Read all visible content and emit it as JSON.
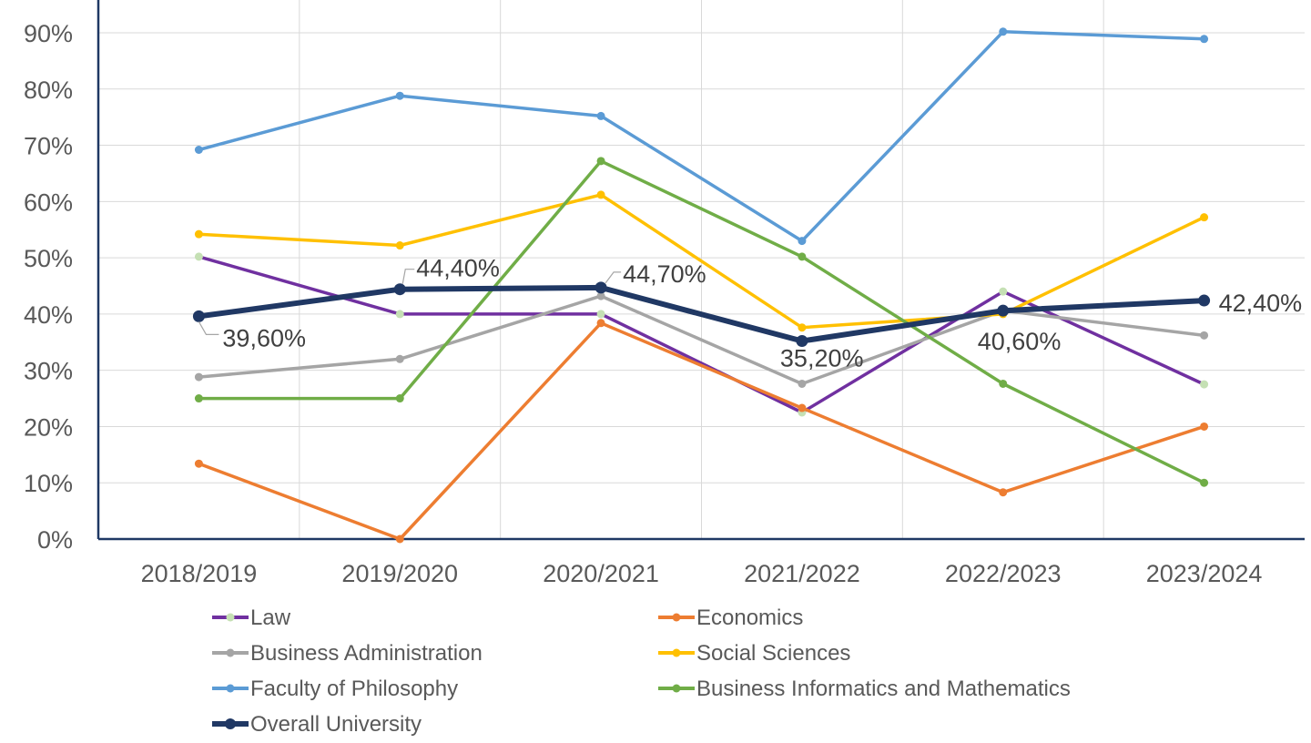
{
  "chart_data": {
    "type": "line",
    "title": "",
    "xlabel": "",
    "ylabel": "",
    "ylim": [
      0,
      95
    ],
    "y_ticks": [
      {
        "value": 0,
        "label": "0%"
      },
      {
        "value": 10,
        "label": "10%"
      },
      {
        "value": 20,
        "label": "20%"
      },
      {
        "value": 30,
        "label": "30%"
      },
      {
        "value": 40,
        "label": "40%"
      },
      {
        "value": 50,
        "label": "50%"
      },
      {
        "value": 60,
        "label": "60%"
      },
      {
        "value": 70,
        "label": "70%"
      },
      {
        "value": 80,
        "label": "80%"
      },
      {
        "value": 90,
        "label": "90%"
      }
    ],
    "categories": [
      "2018/2019",
      "2019/2020",
      "2020/2021",
      "2021/2022",
      "2022/2023",
      "2023/2024"
    ],
    "grid": true,
    "legend_position": "bottom",
    "series": [
      {
        "name": "Law",
        "color": "#7030A0",
        "marker_color": "#C5E0B4",
        "width": "normal",
        "values": [
          50.2,
          40,
          40,
          22.5,
          44,
          27.5
        ]
      },
      {
        "name": "Economics",
        "color": "#ED7D31",
        "marker_color": "#ED7D31",
        "width": "normal",
        "values": [
          13.4,
          0,
          38.4,
          23.3,
          8.3,
          20
        ]
      },
      {
        "name": "Business Administration",
        "color": "#A5A5A5",
        "marker_color": "#A5A5A5",
        "width": "normal",
        "values": [
          28.8,
          32,
          43.2,
          27.6,
          40.6,
          36.2
        ]
      },
      {
        "name": "Social Sciences",
        "color": "#FFC000",
        "marker_color": "#FFC000",
        "width": "normal",
        "values": [
          54.2,
          52.2,
          61.2,
          37.6,
          40,
          57.2
        ]
      },
      {
        "name": "Faculty of Philosophy",
        "color": "#5B9BD5",
        "marker_color": "#5B9BD5",
        "width": "normal",
        "values": [
          69.2,
          78.8,
          75.2,
          53,
          90.2,
          88.9
        ]
      },
      {
        "name": "Business Informatics and Mathematics",
        "color": "#70AD47",
        "marker_color": "#70AD47",
        "width": "normal",
        "values": [
          25,
          25,
          67.2,
          50.2,
          27.6,
          10
        ]
      },
      {
        "name": "Overall University",
        "color": "#203864",
        "marker_color": "#203864",
        "width": "bold",
        "values": [
          39.6,
          44.4,
          44.7,
          35.2,
          40.6,
          42.4
        ]
      }
    ],
    "data_labels": [
      "39,60%",
      "44,40%",
      "44,70%",
      "35,20%",
      "40,60%",
      "42,40%"
    ]
  }
}
